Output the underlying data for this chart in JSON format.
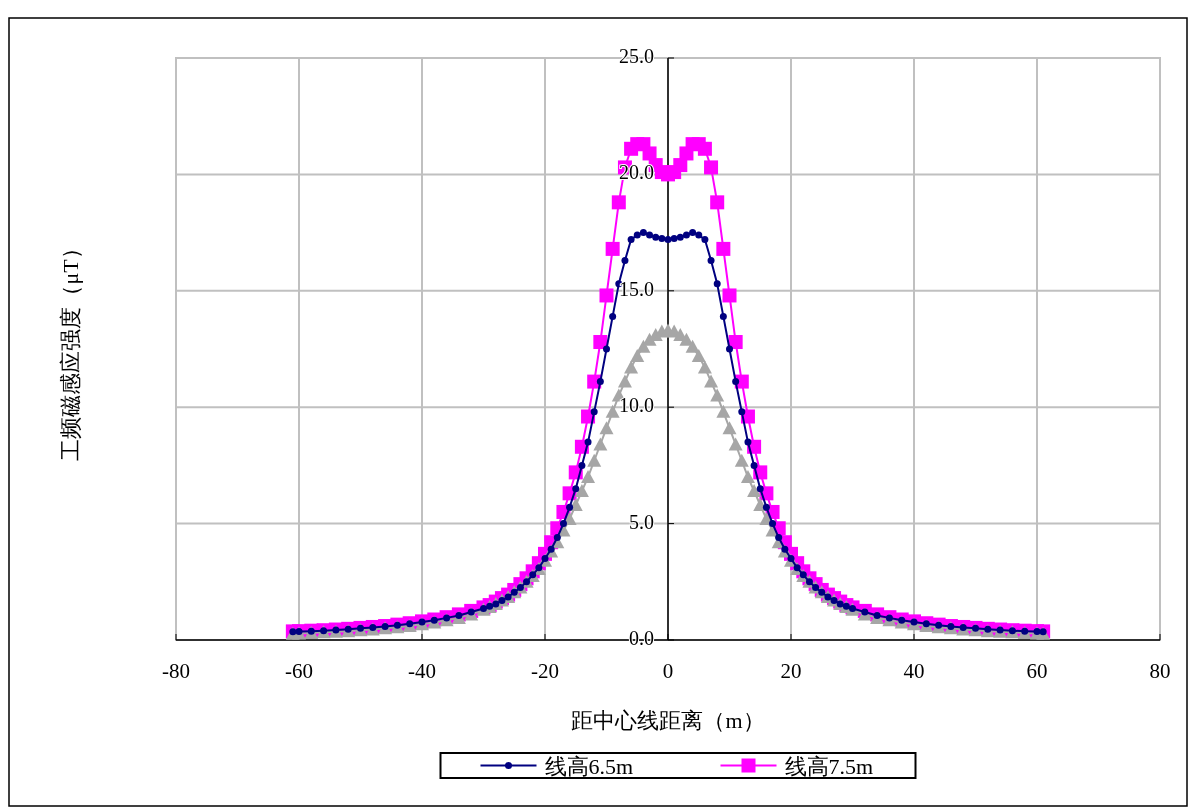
{
  "chart_data": {
    "type": "line",
    "xlabel": "距中心线距离（m）",
    "ylabel": "工频磁感应强度（μT）",
    "x": [
      -61,
      -60,
      -58,
      -56,
      -54,
      -52,
      -50,
      -48,
      -46,
      -44,
      -42,
      -40,
      -38,
      -36,
      -34,
      -32,
      -30,
      -29,
      -28,
      -27,
      -26,
      -25,
      -24,
      -23,
      -22,
      -21,
      -20,
      -19,
      -18,
      -17,
      -16,
      -15,
      -14,
      -13,
      -12,
      -11,
      -10,
      -9,
      -8,
      -7,
      -6,
      -5,
      -4,
      -3,
      -2,
      -1,
      0,
      1,
      2,
      3,
      4,
      5,
      6,
      7,
      8,
      9,
      10,
      11,
      12,
      13,
      14,
      15,
      16,
      17,
      18,
      19,
      20,
      21,
      22,
      23,
      24,
      25,
      26,
      27,
      28,
      29,
      30,
      32,
      34,
      36,
      38,
      40,
      42,
      44,
      46,
      48,
      50,
      52,
      54,
      56,
      58,
      60,
      61
    ],
    "series": [
      {
        "name": "线高6.5m",
        "color": "#000080",
        "marker": "circle",
        "values": [
          0.35,
          0.36,
          0.38,
          0.4,
          0.43,
          0.46,
          0.5,
          0.54,
          0.58,
          0.63,
          0.7,
          0.77,
          0.85,
          0.95,
          1.05,
          1.2,
          1.35,
          1.45,
          1.55,
          1.7,
          1.85,
          2.05,
          2.25,
          2.5,
          2.8,
          3.1,
          3.5,
          3.9,
          4.4,
          5.0,
          5.7,
          6.5,
          7.5,
          8.5,
          9.8,
          11.1,
          12.5,
          13.9,
          15.3,
          16.3,
          17.2,
          17.4,
          17.5,
          17.4,
          17.3,
          17.25,
          17.2,
          17.25,
          17.3,
          17.4,
          17.5,
          17.4,
          17.2,
          16.3,
          15.3,
          13.9,
          12.5,
          11.1,
          9.8,
          8.5,
          7.5,
          6.5,
          5.7,
          5.0,
          4.4,
          3.9,
          3.5,
          3.1,
          2.8,
          2.5,
          2.25,
          2.05,
          1.85,
          1.7,
          1.55,
          1.45,
          1.35,
          1.2,
          1.05,
          0.95,
          0.85,
          0.77,
          0.7,
          0.63,
          0.58,
          0.54,
          0.5,
          0.46,
          0.43,
          0.4,
          0.38,
          0.36,
          0.35
        ]
      },
      {
        "name": "线高7.5m",
        "color": "#ff00ff",
        "marker": "square",
        "values": [
          0.37,
          0.38,
          0.4,
          0.42,
          0.45,
          0.48,
          0.52,
          0.56,
          0.6,
          0.66,
          0.72,
          0.8,
          0.88,
          0.98,
          1.1,
          1.25,
          1.4,
          1.5,
          1.65,
          1.8,
          1.95,
          2.15,
          2.4,
          2.65,
          2.95,
          3.3,
          3.7,
          4.2,
          4.8,
          5.5,
          6.3,
          7.2,
          8.3,
          9.6,
          11.1,
          12.8,
          14.8,
          16.8,
          18.8,
          20.3,
          21.1,
          21.3,
          21.3,
          20.9,
          20.4,
          20.1,
          20.0,
          20.1,
          20.4,
          20.9,
          21.3,
          21.3,
          21.1,
          20.3,
          18.8,
          16.8,
          14.8,
          12.8,
          11.1,
          9.6,
          8.3,
          7.2,
          6.3,
          5.5,
          4.8,
          4.2,
          3.7,
          3.3,
          2.95,
          2.65,
          2.4,
          2.15,
          1.95,
          1.8,
          1.65,
          1.5,
          1.4,
          1.25,
          1.1,
          0.98,
          0.88,
          0.8,
          0.72,
          0.66,
          0.6,
          0.56,
          0.52,
          0.48,
          0.45,
          0.42,
          0.4,
          0.38,
          0.37
        ]
      },
      {
        "color": "#a6a6a6",
        "marker": "triangle",
        "values": [
          0.27,
          0.28,
          0.3,
          0.33,
          0.35,
          0.38,
          0.42,
          0.45,
          0.5,
          0.55,
          0.6,
          0.68,
          0.75,
          0.85,
          0.95,
          1.1,
          1.3,
          1.42,
          1.55,
          1.7,
          1.85,
          2.05,
          2.25,
          2.5,
          2.75,
          3.05,
          3.4,
          3.8,
          4.2,
          4.7,
          5.2,
          5.8,
          6.4,
          7.0,
          7.7,
          8.4,
          9.1,
          9.8,
          10.5,
          11.1,
          11.7,
          12.2,
          12.6,
          12.9,
          13.1,
          13.25,
          13.3,
          13.25,
          13.1,
          12.9,
          12.6,
          12.2,
          11.7,
          11.1,
          10.5,
          9.8,
          9.1,
          8.4,
          7.7,
          7.0,
          6.4,
          5.8,
          5.2,
          4.7,
          4.2,
          3.8,
          3.4,
          3.05,
          2.75,
          2.5,
          2.25,
          2.05,
          1.85,
          1.7,
          1.55,
          1.42,
          1.3,
          1.1,
          0.95,
          0.85,
          0.75,
          0.68,
          0.6,
          0.55,
          0.5,
          0.45,
          0.42,
          0.38,
          0.35,
          0.33,
          0.3,
          0.28,
          0.27
        ]
      }
    ],
    "xlim": [
      -80,
      80
    ],
    "xticks": [
      -80,
      -60,
      -40,
      -20,
      0,
      20,
      40,
      60,
      80
    ],
    "ylim": [
      0,
      25
    ],
    "yticks": [
      {
        "value": 0,
        "label": "0.0"
      },
      {
        "value": 5,
        "label": "5.0"
      },
      {
        "value": 10,
        "label": "10.0"
      },
      {
        "value": 15,
        "label": "15.0"
      },
      {
        "value": 20,
        "label": "20.0"
      },
      {
        "value": 25,
        "label": "25.0"
      }
    ],
    "grid": true,
    "legend": "bottom",
    "line_style": "solid"
  }
}
